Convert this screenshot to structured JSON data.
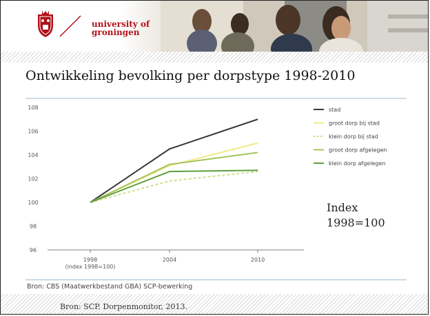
{
  "header": {
    "university_line1": "university of",
    "university_line2": "groningen"
  },
  "slide": {
    "title": "Ontwikkeling bevolking per dorpstype 1998-2010",
    "index_note_line1": "Index",
    "index_note_line2": "1998=100",
    "chart_source": "Bron: CBS (Maatwerkbestand GBA) SCP-bewerking",
    "footer_credit": "Bron: SCP, Dorpenmonitor, 2013."
  },
  "colors": {
    "brand_red": "#b0101a",
    "stad": "#3a3a3a",
    "groot_dorp_bij_stad": "#f0ea86",
    "klein_dorp_bij_stad": "#cde08a",
    "groot_dorp_afgelegen": "#a6c45a",
    "klein_dorp_afgelegen": "#5e9e3c"
  },
  "chart_data": {
    "type": "line",
    "x": [
      "1998\n(index 1998=100)",
      "2004",
      "2010"
    ],
    "x_tick_labels": [
      "1998",
      "(index 1998=100)",
      "2004",
      "2010"
    ],
    "ylim": [
      96,
      108
    ],
    "yticks": [
      96,
      98,
      100,
      102,
      104,
      106,
      108
    ],
    "grid": false,
    "legend_position": "right",
    "series": [
      {
        "name": "stad",
        "values": [
          100,
          104.5,
          107
        ],
        "color": "#3a3a3a",
        "dash": ""
      },
      {
        "name": "groot dorp bij stad",
        "values": [
          100,
          103.1,
          105
        ],
        "color": "#f0ea86",
        "dash": ""
      },
      {
        "name": "klein dorp bij stad",
        "values": [
          100,
          101.8,
          102.6
        ],
        "color": "#cde08a",
        "dash": "4,3"
      },
      {
        "name": "groot dorp afgelegen",
        "values": [
          100,
          103.2,
          104.2
        ],
        "color": "#a6c45a",
        "dash": ""
      },
      {
        "name": "klein dorp afgelegen",
        "values": [
          100,
          102.6,
          102.7
        ],
        "color": "#5e9e3c",
        "dash": ""
      }
    ]
  }
}
